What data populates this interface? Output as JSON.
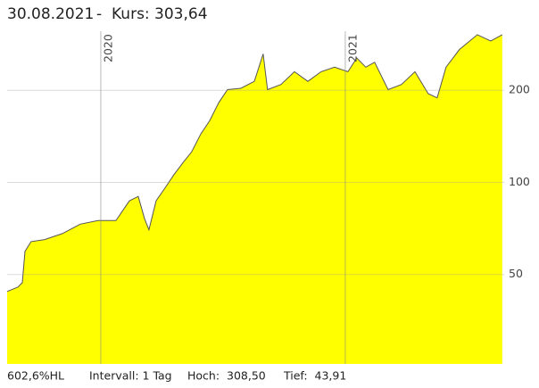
{
  "header": {
    "date": "30.08.2021",
    "separator": "-",
    "price": "Kurs: 303,64"
  },
  "chart_data": {
    "type": "area",
    "color": "#ffff00",
    "line_color": "#555555",
    "log_scale": true,
    "grid": true,
    "x": [
      2019.617,
      2019.661,
      2019.679,
      2019.69,
      2019.715,
      2019.77,
      2019.843,
      2019.916,
      2019.989,
      2020.062,
      2020.117,
      2020.153,
      2020.179,
      2020.197,
      2020.226,
      2020.263,
      2020.299,
      2020.336,
      2020.372,
      2020.409,
      2020.445,
      2020.482,
      2020.518,
      2020.573,
      2020.628,
      2020.664,
      2020.682,
      2020.737,
      2020.792,
      2020.847,
      2020.901,
      2020.956,
      2021.011,
      2021.047,
      2021.084,
      2021.12,
      2021.175,
      2021.23,
      2021.285,
      2021.339,
      2021.376,
      2021.412,
      2021.467,
      2021.54,
      2021.595,
      2021.642
    ],
    "values": [
      44,
      45.5,
      47,
      59.5,
      64,
      65,
      68,
      73,
      75,
      75,
      87,
      90,
      76,
      70,
      87,
      96,
      106,
      116,
      126,
      144,
      159,
      182,
      201,
      203,
      214,
      263,
      201,
      209,
      230,
      214,
      230,
      238,
      230,
      255,
      238,
      247,
      201,
      209,
      230,
      195,
      189,
      238,
      272,
      304,
      290,
      304
    ],
    "xlim": [
      2019.617,
      2021.65
    ],
    "xticks": [
      2020,
      2021
    ],
    "ylim": [
      25.5,
      312
    ],
    "yticks": [
      50,
      100,
      200
    ]
  },
  "footer": {
    "range": "602,6%HL",
    "interval": "Intervall: 1 Tag",
    "high": "Hoch:  308,50",
    "low": "Tief:  43,91"
  }
}
